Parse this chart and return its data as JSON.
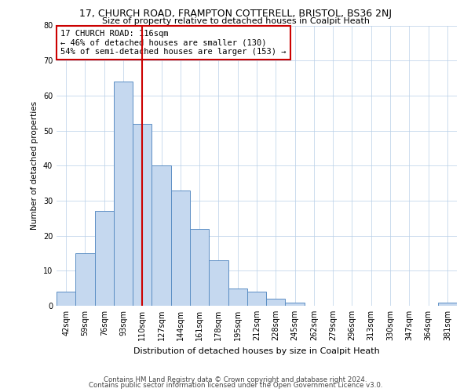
{
  "title1": "17, CHURCH ROAD, FRAMPTON COTTERELL, BRISTOL, BS36 2NJ",
  "title2": "Size of property relative to detached houses in Coalpit Heath",
  "xlabel": "Distribution of detached houses by size in Coalpit Heath",
  "ylabel": "Number of detached properties",
  "categories": [
    "42sqm",
    "59sqm",
    "76sqm",
    "93sqm",
    "110sqm",
    "127sqm",
    "144sqm",
    "161sqm",
    "178sqm",
    "195sqm",
    "212sqm",
    "228sqm",
    "245sqm",
    "262sqm",
    "279sqm",
    "296sqm",
    "313sqm",
    "330sqm",
    "347sqm",
    "364sqm",
    "381sqm"
  ],
  "values": [
    4,
    15,
    27,
    64,
    52,
    40,
    33,
    22,
    13,
    5,
    4,
    2,
    1,
    0,
    0,
    0,
    0,
    0,
    0,
    0,
    1
  ],
  "bar_color": "#c5d8ef",
  "bar_edge_color": "#5b8ec4",
  "vline_x_idx": 4,
  "vline_color": "#cc0000",
  "annotation_text": "17 CHURCH ROAD: 116sqm\n← 46% of detached houses are smaller (130)\n54% of semi-detached houses are larger (153) →",
  "annotation_box_color": "#ffffff",
  "annotation_box_edge_color": "#cc0000",
  "ylim": [
    0,
    80
  ],
  "yticks": [
    0,
    10,
    20,
    30,
    40,
    50,
    60,
    70,
    80
  ],
  "footer1": "Contains HM Land Registry data © Crown copyright and database right 2024.",
  "footer2": "Contains public sector information licensed under the Open Government Licence v3.0.",
  "bg_color": "#ffffff",
  "grid_color": "#b8cfe8"
}
